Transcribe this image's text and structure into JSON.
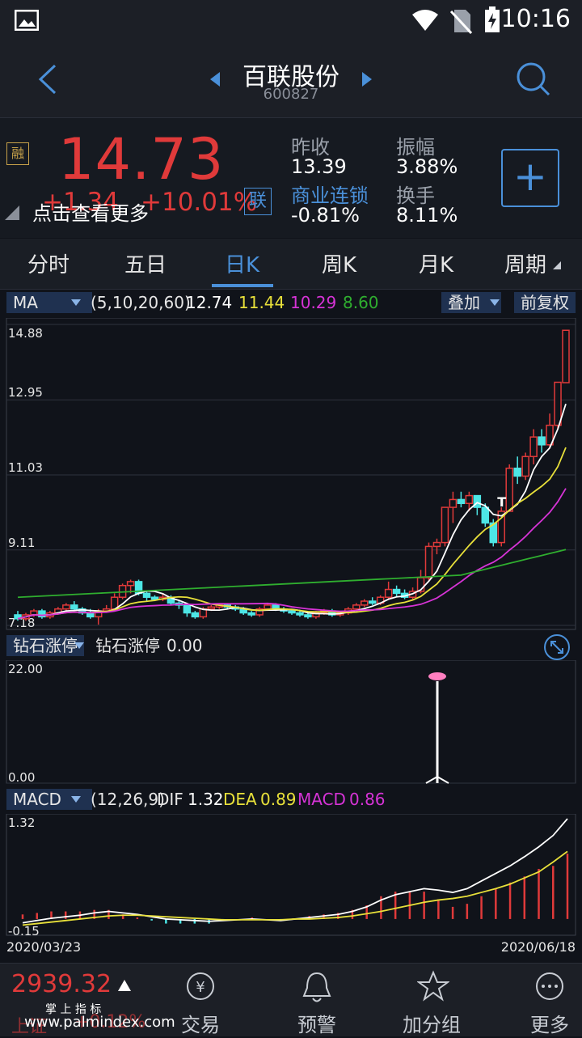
{
  "status": {
    "time": "10:16"
  },
  "header": {
    "title": "百联股份",
    "code": "600827"
  },
  "quote": {
    "price": "14.73",
    "change": "+1.34",
    "change_pct": "+10.01%",
    "badge_left": "融",
    "badge_right": "联",
    "more_link": "点击查看更多",
    "prev_close_label": "昨收",
    "prev_close": "13.39",
    "amplitude_label": "振幅",
    "amplitude": "3.88%",
    "sector_label": "商业连锁",
    "sector_change": "-0.81%",
    "turnover_label": "换手",
    "turnover": "8.11%",
    "add_label": "+"
  },
  "tabs": [
    {
      "label": "分时"
    },
    {
      "label": "五日"
    },
    {
      "label": "日K"
    },
    {
      "label": "周K"
    },
    {
      "label": "月K"
    },
    {
      "label": "周期"
    }
  ],
  "ma_panel": {
    "indicator": "MA",
    "params": "(5,10,20,60)",
    "ma5": "12.74",
    "ma10": "11.44",
    "ma20": "10.29",
    "ma60": "8.60",
    "overlay": "叠加",
    "adjust": "前复权",
    "y_labels": [
      "14.88",
      "12.95",
      "11.03",
      "9.11",
      "7.18"
    ],
    "t_marker": "T",
    "colors": {
      "ma5": "#ffffff",
      "ma10": "#e8e03a",
      "ma20": "#d633d6",
      "ma60": "#2fae2f"
    }
  },
  "zs_panel": {
    "indicator": "钻石涨停",
    "name": "钻石涨停",
    "value": "0.00",
    "y_top": "22.00",
    "y_bottom": "0.00"
  },
  "macd_panel": {
    "indicator": "MACD",
    "params": "(12,26,9)",
    "dif_label": "DIF",
    "dif": "1.32",
    "dea_label": "DEA",
    "dea": "0.89",
    "macd_label": "MACD",
    "macd": "0.86",
    "y_top": "1.32",
    "y_bottom": "-0.15",
    "date_start": "2020/03/23",
    "date_end": "2020/06/18"
  },
  "bottom": {
    "index_value": "2939.32",
    "index_name": "上证",
    "index_pct": "+0.12%",
    "watermark": "www.palmindex.com",
    "watermark_top": "掌 上 指 标",
    "items": [
      {
        "label": "交易"
      },
      {
        "label": "预警"
      },
      {
        "label": "加分组"
      },
      {
        "label": "更多"
      }
    ]
  },
  "chart_data": [
    {
      "type": "candlestick",
      "title": "",
      "y_ticks": [
        14.88,
        12.95,
        11.03,
        9.11,
        7.18
      ],
      "ylim": [
        7.18,
        14.88
      ],
      "candles": [
        [
          7.45,
          7.35,
          7.55,
          7.3
        ],
        [
          7.35,
          7.45,
          7.5,
          7.3
        ],
        [
          7.45,
          7.55,
          7.6,
          7.4
        ],
        [
          7.55,
          7.4,
          7.6,
          7.35
        ],
        [
          7.4,
          7.5,
          7.55,
          7.35
        ],
        [
          7.5,
          7.6,
          7.65,
          7.45
        ],
        [
          7.6,
          7.7,
          7.75,
          7.5
        ],
        [
          7.7,
          7.6,
          7.8,
          7.55
        ],
        [
          7.6,
          7.5,
          7.65,
          7.45
        ],
        [
          7.5,
          7.4,
          7.6,
          7.35
        ],
        [
          7.4,
          7.55,
          7.6,
          7.2
        ],
        [
          7.55,
          7.6,
          7.7,
          7.5
        ],
        [
          7.6,
          7.9,
          8.0,
          7.55
        ],
        [
          7.9,
          8.2,
          8.25,
          7.85
        ],
        [
          8.2,
          8.3,
          8.35,
          8.0
        ],
        [
          8.3,
          8.0,
          8.35,
          7.95
        ],
        [
          8.0,
          7.9,
          8.05,
          7.8
        ],
        [
          7.9,
          7.85,
          7.95,
          7.8
        ],
        [
          7.85,
          7.9,
          8.0,
          7.8
        ],
        [
          7.9,
          7.75,
          7.95,
          7.7
        ],
        [
          7.75,
          7.7,
          7.8,
          7.6
        ],
        [
          7.7,
          7.5,
          7.75,
          7.4
        ],
        [
          7.5,
          7.4,
          7.55,
          7.35
        ],
        [
          7.4,
          7.6,
          7.65,
          7.35
        ],
        [
          7.6,
          7.65,
          7.7,
          7.55
        ],
        [
          7.65,
          7.7,
          7.75,
          7.6
        ],
        [
          7.7,
          7.65,
          7.75,
          7.6
        ],
        [
          7.65,
          7.6,
          7.7,
          7.55
        ],
        [
          7.6,
          7.5,
          7.65,
          7.45
        ],
        [
          7.5,
          7.45,
          7.55,
          7.4
        ],
        [
          7.45,
          7.6,
          7.65,
          7.4
        ],
        [
          7.6,
          7.7,
          7.75,
          7.55
        ],
        [
          7.7,
          7.6,
          7.75,
          7.55
        ],
        [
          7.6,
          7.55,
          7.65,
          7.5
        ],
        [
          7.55,
          7.5,
          7.6,
          7.45
        ],
        [
          7.5,
          7.45,
          7.55,
          7.4
        ],
        [
          7.45,
          7.4,
          7.5,
          7.35
        ],
        [
          7.4,
          7.5,
          7.55,
          7.35
        ],
        [
          7.5,
          7.55,
          7.6,
          7.45
        ],
        [
          7.55,
          7.45,
          7.6,
          7.4
        ],
        [
          7.45,
          7.5,
          7.55,
          7.4
        ],
        [
          7.5,
          7.6,
          7.65,
          7.45
        ],
        [
          7.6,
          7.7,
          7.75,
          7.55
        ],
        [
          7.7,
          7.8,
          7.85,
          7.65
        ],
        [
          7.8,
          7.75,
          7.9,
          7.7
        ],
        [
          7.75,
          7.9,
          7.95,
          7.7
        ],
        [
          7.9,
          8.1,
          8.3,
          7.85
        ],
        [
          8.1,
          8.0,
          8.2,
          7.9
        ],
        [
          8.0,
          7.9,
          8.1,
          7.85
        ],
        [
          7.9,
          8.05,
          8.15,
          7.85
        ],
        [
          8.05,
          8.4,
          8.6,
          8.0
        ],
        [
          8.4,
          9.2,
          9.3,
          8.3
        ],
        [
          9.2,
          9.3,
          9.4,
          9.0
        ],
        [
          9.3,
          10.2,
          10.2,
          9.2
        ],
        [
          10.2,
          10.4,
          10.6,
          9.8
        ],
        [
          10.4,
          10.3,
          10.6,
          10.2
        ],
        [
          10.3,
          10.5,
          10.6,
          10.1
        ],
        [
          10.5,
          10.2,
          10.5,
          10.0
        ],
        [
          10.2,
          9.8,
          10.3,
          9.7
        ],
        [
          9.8,
          9.3,
          9.9,
          9.2
        ],
        [
          9.3,
          10.1,
          10.2,
          9.2
        ],
        [
          10.1,
          11.2,
          11.3,
          10.9
        ],
        [
          11.2,
          11.0,
          11.5,
          10.8
        ],
        [
          11.0,
          11.5,
          11.6,
          10.9
        ],
        [
          11.5,
          12.0,
          12.2,
          11.3
        ],
        [
          12.0,
          11.8,
          12.2,
          11.6
        ],
        [
          11.8,
          12.3,
          12.6,
          11.7
        ],
        [
          12.3,
          13.4,
          13.4,
          12.2
        ],
        [
          13.39,
          14.73,
          14.73,
          14.2
        ]
      ]
    },
    {
      "type": "bar",
      "title": "钻石涨停",
      "ylim": [
        0,
        22
      ],
      "spike_value": 22.0
    },
    {
      "type": "line",
      "title": "MACD",
      "ylim": [
        -0.15,
        1.32
      ],
      "x_start": "2020/03/23",
      "x_end": "2020/06/18",
      "series": [
        {
          "name": "DIF",
          "values": [
            -0.05,
            -0.02,
            0.01,
            0.03,
            0.05,
            0.08,
            0.1,
            0.08,
            0.06,
            0.03,
            0.0,
            -0.01,
            -0.02,
            -0.03,
            -0.02,
            -0.01,
            0.0,
            -0.01,
            -0.02,
            0.0,
            0.02,
            0.04,
            0.06,
            0.1,
            0.16,
            0.25,
            0.32,
            0.36,
            0.4,
            0.38,
            0.35,
            0.4,
            0.5,
            0.6,
            0.7,
            0.82,
            0.95,
            1.1,
            1.32
          ]
        },
        {
          "name": "DEA",
          "values": [
            -0.08,
            -0.06,
            -0.04,
            -0.02,
            0.0,
            0.02,
            0.04,
            0.05,
            0.05,
            0.04,
            0.03,
            0.02,
            0.01,
            0.0,
            -0.01,
            -0.01,
            -0.01,
            -0.01,
            -0.01,
            0.0,
            0.0,
            0.01,
            0.02,
            0.04,
            0.07,
            0.1,
            0.14,
            0.18,
            0.22,
            0.25,
            0.27,
            0.3,
            0.35,
            0.4,
            0.46,
            0.54,
            0.62,
            0.75,
            0.89
          ]
        }
      ]
    }
  ]
}
